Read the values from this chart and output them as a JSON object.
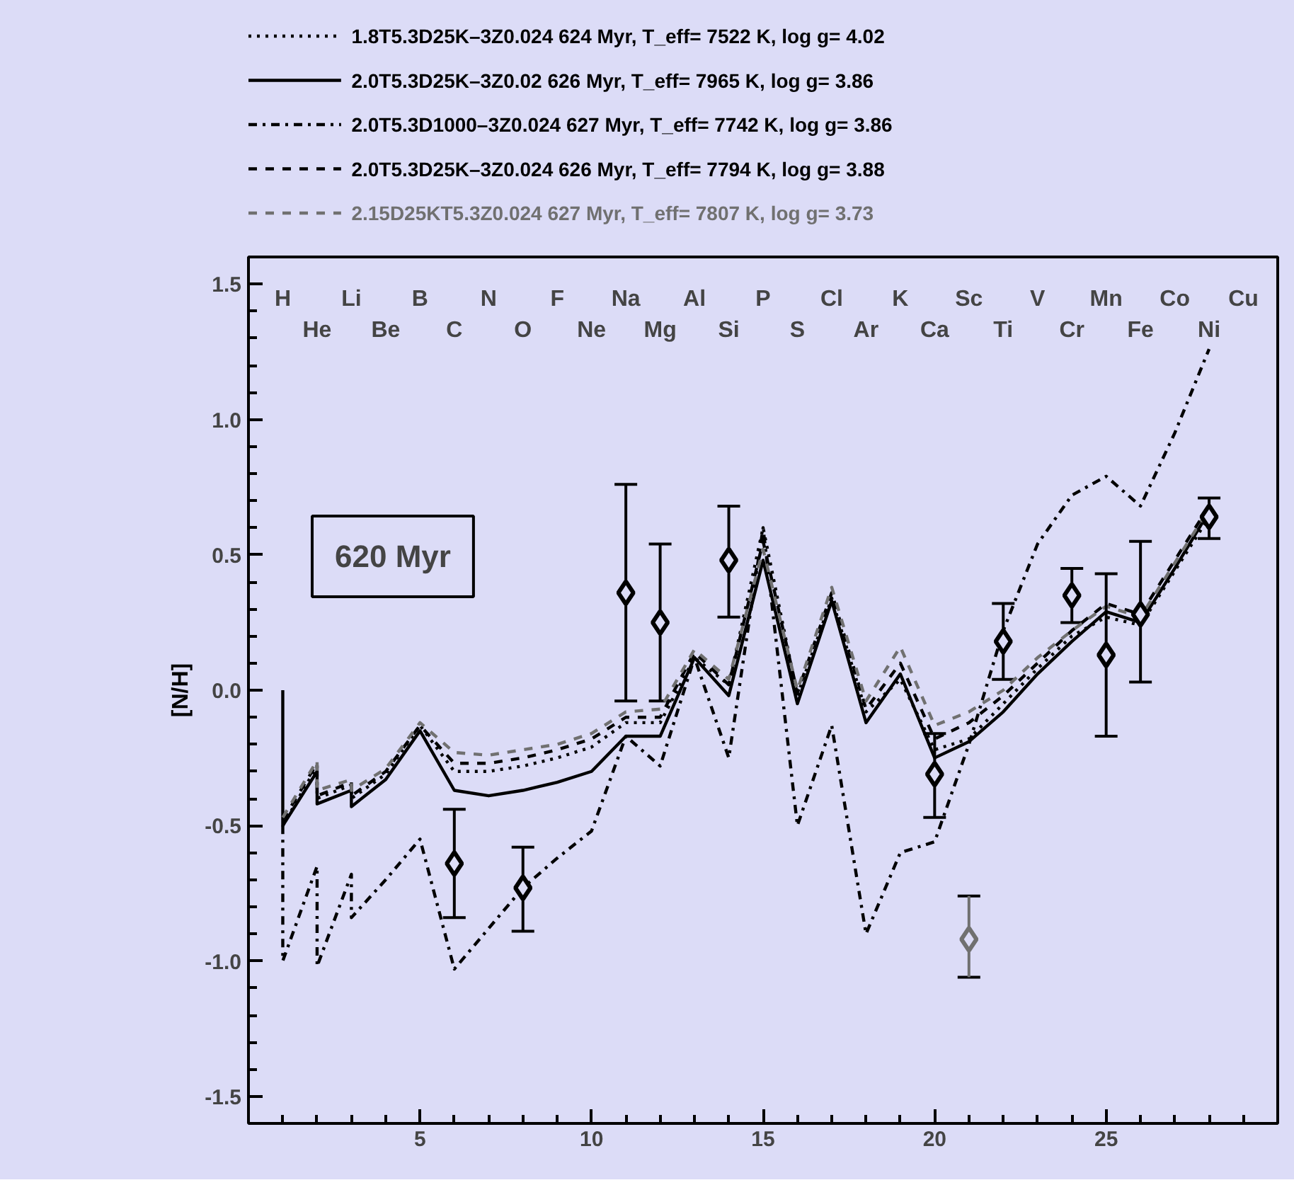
{
  "chart_data": {
    "type": "line",
    "ylabel": "[N/H]",
    "legend": "top",
    "grid": false,
    "xlim": [
      0,
      30
    ],
    "xticks": [
      5,
      10,
      15,
      20,
      25
    ],
    "ylim": [
      -1.6,
      1.6
    ],
    "yticks": [
      {
        "value": -1.5,
        "label": "-1.5"
      },
      {
        "value": -1.0,
        "label": "-1.0"
      },
      {
        "value": -0.5,
        "label": "-0.5"
      },
      {
        "value": 0,
        "label": "0.0"
      },
      {
        "value": 0.5,
        "label": "0.5"
      },
      {
        "value": 1.0,
        "label": "1.0"
      },
      {
        "value": 1.5,
        "label": "1.5"
      }
    ],
    "series": [
      {
        "name": "1.8T5.3D25K–3Z0.024   624 Myr, T_eff= 7522 K, log g= 4.02",
        "color": "#000000",
        "line_style": "dotted",
        "x": [
          1,
          2,
          2,
          3,
          3,
          4,
          5,
          6,
          7,
          8,
          9,
          10,
          11,
          12,
          13,
          14,
          15,
          16,
          17,
          18,
          19,
          20,
          21,
          22,
          23,
          24,
          25,
          26,
          27,
          28
        ],
        "values": [
          -0.5,
          -0.28,
          -0.4,
          -0.35,
          -0.4,
          -0.31,
          -0.13,
          -0.3,
          -0.3,
          -0.28,
          -0.25,
          -0.21,
          -0.12,
          -0.12,
          0.12,
          0.02,
          0.6,
          -0.02,
          0.34,
          -0.08,
          0.04,
          -0.22,
          -0.18,
          -0.05,
          0.08,
          0.2,
          0.27,
          0.24,
          0.44,
          0.64
        ]
      },
      {
        "name": "2.0T5.3D25K–3Z0.02   626 Myr, T_eff= 7965 K, log g= 3.86",
        "color": "#000000",
        "line_style": "solid",
        "x": [
          1,
          1,
          2,
          2,
          3,
          3,
          4,
          5,
          6,
          7,
          8,
          9,
          10,
          11,
          12,
          13,
          14,
          15,
          16,
          17,
          18,
          19,
          20,
          21,
          22,
          23,
          24,
          25,
          26,
          27,
          28
        ],
        "values": [
          0.0,
          -0.5,
          -0.3,
          -0.42,
          -0.37,
          -0.43,
          -0.33,
          -0.15,
          -0.37,
          -0.39,
          -0.37,
          -0.34,
          -0.3,
          -0.17,
          -0.17,
          0.12,
          -0.02,
          0.48,
          -0.05,
          0.33,
          -0.12,
          0.06,
          -0.25,
          -0.19,
          -0.08,
          0.06,
          0.18,
          0.29,
          0.25,
          0.45,
          0.66
        ]
      },
      {
        "name": "2.0T5.3D1000–3Z0.024   627 Myr, T_eff= 7742 K, log g= 3.86",
        "color": "#000000",
        "line_style": "dashdot",
        "x": [
          1,
          1,
          2,
          2,
          3,
          3,
          4,
          5,
          6,
          7,
          8,
          9,
          10,
          11,
          12,
          13,
          14,
          15,
          16,
          17,
          18,
          19,
          20,
          21,
          22,
          23,
          24,
          25,
          26,
          27,
          28
        ],
        "values": [
          -0.5,
          -1.0,
          -0.65,
          -1.02,
          -0.68,
          -0.84,
          -0.7,
          -0.55,
          -1.03,
          -0.88,
          -0.73,
          -0.62,
          -0.52,
          -0.17,
          -0.28,
          0.12,
          -0.25,
          0.6,
          -0.5,
          -0.13,
          -0.9,
          -0.6,
          -0.56,
          -0.2,
          0.22,
          0.54,
          0.72,
          0.79,
          0.68,
          0.95,
          1.26
        ]
      },
      {
        "name": "2.0T5.3D25K–3Z0.024   626 Myr, T_eff= 7794 K, log g= 3.88",
        "color": "#000000",
        "line_style": "dashed",
        "x": [
          1,
          2,
          2,
          3,
          3,
          4,
          5,
          6,
          7,
          8,
          9,
          10,
          11,
          12,
          13,
          14,
          15,
          16,
          17,
          18,
          19,
          20,
          21,
          22,
          23,
          24,
          25,
          26,
          27,
          28
        ],
        "values": [
          -0.48,
          -0.27,
          -0.39,
          -0.34,
          -0.39,
          -0.3,
          -0.13,
          -0.27,
          -0.27,
          -0.25,
          -0.22,
          -0.18,
          -0.1,
          -0.1,
          0.14,
          0.02,
          0.55,
          -0.01,
          0.36,
          -0.07,
          0.1,
          -0.18,
          -0.12,
          -0.02,
          0.1,
          0.22,
          0.32,
          0.28,
          0.48,
          0.68
        ]
      },
      {
        "name": "2.15D25KT5.3Z0.024   627 Myr, T_eff= 7807 K, log g= 3.73",
        "color": "#707070",
        "line_style": "dashed",
        "x": [
          1,
          2,
          2,
          3,
          3,
          4,
          5,
          6,
          7,
          8,
          9,
          10,
          11,
          12,
          13,
          14,
          15,
          16,
          17,
          18,
          19,
          20,
          21,
          22,
          23,
          24,
          25,
          26,
          27,
          28
        ],
        "values": [
          -0.47,
          -0.26,
          -0.37,
          -0.33,
          -0.37,
          -0.29,
          -0.12,
          -0.23,
          -0.24,
          -0.22,
          -0.2,
          -0.16,
          -0.08,
          -0.07,
          0.15,
          0.04,
          0.52,
          0.0,
          0.38,
          -0.04,
          0.16,
          -0.13,
          -0.08,
          0.0,
          0.12,
          0.22,
          0.31,
          0.27,
          0.47,
          0.67
        ]
      },
      {
        "type": "scatter",
        "marker": "diamond",
        "x": [
          6,
          8,
          11,
          12,
          14,
          20,
          21,
          22,
          24,
          25,
          26,
          28
        ],
        "values": [
          -0.64,
          -0.73,
          0.36,
          0.25,
          0.48,
          -0.31,
          -0.92,
          0.18,
          0.35,
          0.13,
          0.28,
          0.64
        ],
        "colors": [
          "#000000",
          "#000000",
          "#000000",
          "#000000",
          "#000000",
          "#000000",
          "#707070",
          "#000000",
          "#000000",
          "#000000",
          "#000000",
          "#000000"
        ],
        "errors": [
          [
            -0.84,
            -0.44
          ],
          [
            -0.89,
            -0.58
          ],
          [
            -0.04,
            0.76
          ],
          [
            -0.04,
            0.54
          ],
          [
            0.27,
            0.68
          ],
          [
            -0.47,
            -0.16
          ],
          [
            -1.06,
            -0.76
          ],
          [
            0.04,
            0.32
          ],
          [
            0.25,
            0.45
          ],
          [
            -0.17,
            0.43
          ],
          [
            0.03,
            0.55
          ],
          [
            0.56,
            0.71
          ]
        ]
      }
    ],
    "annotations": [
      "620 Myr",
      "H",
      "He",
      "Li",
      "Be",
      "B",
      "C",
      "N",
      "O",
      "F",
      "Ne",
      "Na",
      "Mg",
      "Al",
      "Si",
      "P",
      "S",
      "Cl",
      "Ar",
      "K",
      "Ca",
      "Sc",
      "Ti",
      "V",
      "Cr",
      "Mn",
      "Fe",
      "Co",
      "Ni",
      "Cu"
    ]
  }
}
